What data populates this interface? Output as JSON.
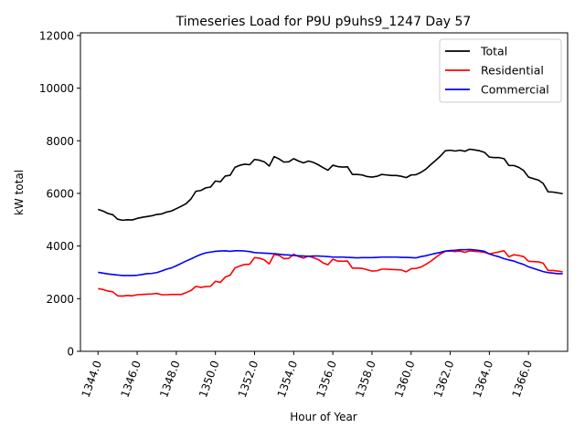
{
  "chart_data": {
    "type": "line",
    "title": "Timeseries Load for P9U p9uhs9_1247  Day 57",
    "xlabel": "Hour of Year",
    "ylabel": "kW total",
    "xlim": [
      1343.1,
      1368.0
    ],
    "ylim": [
      0,
      12100
    ],
    "xticks": [
      1344,
      1346,
      1348,
      1350,
      1352,
      1354,
      1356,
      1358,
      1360,
      1362,
      1364,
      1366
    ],
    "xtick_labels": [
      "1344.0",
      "1346.0",
      "1348.0",
      "1350.0",
      "1352.0",
      "1354.0",
      "1356.0",
      "1358.0",
      "1360.0",
      "1362.0",
      "1364.0",
      "1366.0"
    ],
    "yticks": [
      0,
      2000,
      4000,
      6000,
      8000,
      10000,
      12000
    ],
    "ytick_labels": [
      "0",
      "2000",
      "4000",
      "6000",
      "8000",
      "10000",
      "12000"
    ],
    "grid": false,
    "legend_position": "top-right",
    "x_start": 1344.0,
    "x_step": 0.25,
    "series": [
      {
        "name": "Total",
        "color": "#000000",
        "values": [
          5390,
          5330,
          5240,
          5190,
          5020,
          4980,
          5000,
          4990,
          5050,
          5090,
          5120,
          5150,
          5200,
          5220,
          5290,
          5330,
          5420,
          5510,
          5610,
          5790,
          6080,
          6110,
          6210,
          6240,
          6470,
          6440,
          6660,
          6690,
          6990,
          7070,
          7110,
          7090,
          7290,
          7260,
          7200,
          7040,
          7400,
          7310,
          7190,
          7200,
          7320,
          7230,
          7160,
          7230,
          7180,
          7090,
          6980,
          6880,
          7070,
          7020,
          7000,
          7010,
          6720,
          6720,
          6700,
          6640,
          6620,
          6650,
          6720,
          6700,
          6680,
          6680,
          6650,
          6600,
          6700,
          6710,
          6800,
          6920,
          7090,
          7250,
          7420,
          7620,
          7640,
          7610,
          7640,
          7600,
          7680,
          7650,
          7620,
          7560,
          7380,
          7360,
          7360,
          7320,
          7060,
          7060,
          6990,
          6870,
          6620,
          6560,
          6510,
          6380,
          6060,
          6050,
          6020,
          5990
        ]
      },
      {
        "name": "Residential",
        "color": "#ff0000",
        "values": [
          2380,
          2350,
          2290,
          2260,
          2110,
          2100,
          2120,
          2110,
          2150,
          2160,
          2170,
          2180,
          2200,
          2150,
          2150,
          2160,
          2160,
          2160,
          2230,
          2310,
          2470,
          2430,
          2460,
          2470,
          2660,
          2620,
          2820,
          2890,
          3170,
          3240,
          3300,
          3310,
          3560,
          3540,
          3470,
          3320,
          3680,
          3640,
          3520,
          3530,
          3690,
          3600,
          3540,
          3620,
          3560,
          3490,
          3360,
          3290,
          3500,
          3430,
          3420,
          3430,
          3160,
          3160,
          3150,
          3100,
          3050,
          3060,
          3120,
          3120,
          3110,
          3100,
          3090,
          3020,
          3140,
          3150,
          3200,
          3300,
          3420,
          3560,
          3700,
          3800,
          3810,
          3790,
          3810,
          3760,
          3820,
          3800,
          3790,
          3760,
          3700,
          3740,
          3780,
          3820,
          3590,
          3670,
          3640,
          3600,
          3420,
          3410,
          3400,
          3350,
          3070,
          3070,
          3050,
          3020
        ]
      },
      {
        "name": "Commercial",
        "color": "#0000ff",
        "values": [
          3000,
          2970,
          2940,
          2920,
          2900,
          2880,
          2880,
          2880,
          2890,
          2920,
          2950,
          2960,
          2990,
          3050,
          3120,
          3170,
          3250,
          3340,
          3430,
          3510,
          3600,
          3680,
          3740,
          3770,
          3800,
          3810,
          3820,
          3800,
          3820,
          3820,
          3810,
          3790,
          3750,
          3740,
          3730,
          3720,
          3710,
          3690,
          3670,
          3660,
          3640,
          3630,
          3620,
          3610,
          3620,
          3620,
          3610,
          3600,
          3580,
          3580,
          3580,
          3570,
          3560,
          3550,
          3560,
          3560,
          3560,
          3570,
          3580,
          3580,
          3580,
          3580,
          3570,
          3570,
          3560,
          3550,
          3600,
          3630,
          3680,
          3720,
          3760,
          3810,
          3830,
          3840,
          3860,
          3860,
          3870,
          3850,
          3830,
          3800,
          3700,
          3640,
          3590,
          3520,
          3470,
          3430,
          3360,
          3300,
          3210,
          3150,
          3090,
          3030,
          2990,
          2970,
          2950,
          2950
        ]
      }
    ]
  }
}
